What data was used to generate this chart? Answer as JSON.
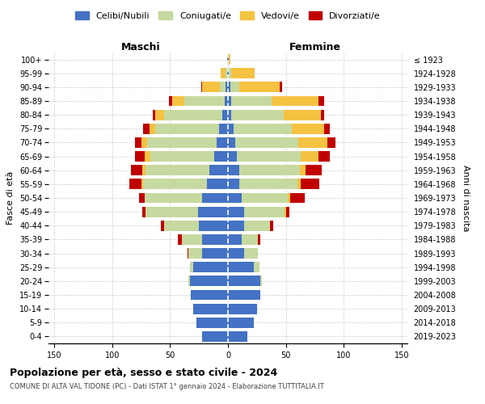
{
  "title": "Popolazione per età, sesso e stato civile - 2024",
  "subtitle": "COMUNE DI ALTA VAL TIDONE (PC) - Dati ISTAT 1° gennaio 2024 - Elaborazione TUTTITALIA.IT",
  "left_label": "Maschi",
  "right_label": "Femmine",
  "ylabel": "Fasce di età",
  "ylabel_right": "Anni di nascita",
  "age_groups": [
    "0-4",
    "5-9",
    "10-14",
    "15-19",
    "20-24",
    "25-29",
    "30-34",
    "35-39",
    "40-44",
    "45-49",
    "50-54",
    "55-59",
    "60-64",
    "65-69",
    "70-74",
    "75-79",
    "80-84",
    "85-89",
    "90-94",
    "95-99",
    "100+"
  ],
  "birth_years": [
    "2019-2023",
    "2014-2018",
    "2009-2013",
    "2004-2008",
    "1999-2003",
    "1994-1998",
    "1989-1993",
    "1984-1988",
    "1979-1983",
    "1974-1978",
    "1969-1973",
    "1964-1968",
    "1959-1963",
    "1954-1958",
    "1949-1953",
    "1944-1948",
    "1939-1943",
    "1934-1938",
    "1929-1933",
    "1924-1928",
    "≤ 1923"
  ],
  "colors": {
    "celibi": "#4472C4",
    "coniugati": "#C6D9A0",
    "vedovi": "#F5C242",
    "divorziati": "#C00000"
  },
  "legend_labels": [
    "Celibi/Nubili",
    "Coniugati/e",
    "Vedovi/e",
    "Divorziati/e"
  ],
  "xlim": 155,
  "maschi": {
    "celibi": [
      22,
      27,
      30,
      32,
      33,
      30,
      22,
      22,
      25,
      26,
      22,
      18,
      16,
      12,
      10,
      8,
      5,
      3,
      2,
      1,
      1
    ],
    "coniugati": [
      0,
      0,
      0,
      0,
      1,
      3,
      12,
      18,
      30,
      45,
      50,
      55,
      55,
      55,
      60,
      55,
      50,
      35,
      5,
      1,
      0
    ],
    "vedovi": [
      0,
      0,
      0,
      0,
      0,
      0,
      0,
      0,
      0,
      0,
      0,
      2,
      3,
      5,
      5,
      5,
      8,
      10,
      15,
      4,
      0
    ],
    "divorziati": [
      0,
      0,
      0,
      0,
      0,
      0,
      1,
      3,
      3,
      3,
      5,
      10,
      10,
      8,
      5,
      5,
      2,
      3,
      1,
      0,
      0
    ]
  },
  "femmine": {
    "nubili": [
      17,
      22,
      25,
      28,
      28,
      22,
      14,
      12,
      14,
      14,
      12,
      10,
      10,
      8,
      6,
      5,
      3,
      3,
      2,
      1,
      1
    ],
    "coniugate": [
      0,
      0,
      0,
      0,
      1,
      5,
      12,
      14,
      22,
      35,
      40,
      50,
      52,
      55,
      55,
      50,
      45,
      35,
      8,
      2,
      0
    ],
    "vedove": [
      0,
      0,
      0,
      0,
      0,
      0,
      0,
      0,
      0,
      1,
      2,
      3,
      5,
      15,
      25,
      28,
      32,
      40,
      35,
      20,
      1
    ],
    "divorziate": [
      0,
      0,
      0,
      0,
      0,
      0,
      0,
      2,
      3,
      3,
      12,
      16,
      14,
      10,
      7,
      5,
      3,
      5,
      2,
      0,
      0
    ]
  },
  "bg_color": "#ffffff",
  "grid_color": "#cccccc",
  "bar_height": 0.75
}
